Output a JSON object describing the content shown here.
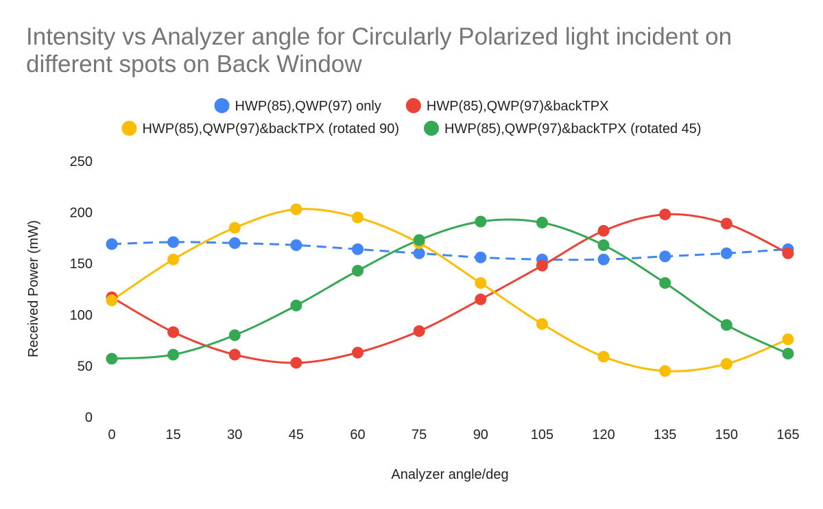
{
  "chart_data": {
    "type": "line",
    "title": "Intensity vs Analyzer angle for Circularly Polarized light incident on different spots on Back Window",
    "xlabel": "Analyzer angle/deg",
    "ylabel": "Received Power (mW)",
    "categories": [
      "0",
      "15",
      "30",
      "45",
      "60",
      "75",
      "90",
      "105",
      "120",
      "135",
      "150",
      "165"
    ],
    "x": [
      0,
      15,
      30,
      45,
      60,
      75,
      90,
      105,
      120,
      135,
      150,
      165
    ],
    "ylim": [
      0,
      250
    ],
    "yticks": [
      0,
      50,
      100,
      150,
      200,
      250
    ],
    "grid": false,
    "legend_position": "top",
    "series": [
      {
        "name": "HWP(85),QWP(97) only",
        "color": "#4285F4",
        "line": "dashed",
        "values": [
          169,
          171,
          170,
          168,
          164,
          160,
          156,
          154,
          154,
          157,
          160,
          164
        ]
      },
      {
        "name": "HWP(85),QWP(97)&backTPX",
        "color": "#EA4335",
        "line": "solid",
        "values": [
          117,
          83,
          61,
          53,
          63,
          84,
          115,
          148,
          182,
          198,
          189,
          160
        ]
      },
      {
        "name": "HWP(85),QWP(97)&backTPX (rotated 90)",
        "color": "#FBBC04",
        "line": "solid",
        "values": [
          114,
          154,
          185,
          203,
          195,
          170,
          131,
          91,
          59,
          45,
          52,
          76
        ]
      },
      {
        "name": "HWP(85),QWP(97)&backTPX (rotated 45)",
        "color": "#34A853",
        "line": "solid",
        "values": [
          57,
          61,
          80,
          109,
          143,
          173,
          191,
          190,
          168,
          131,
          90,
          62
        ]
      }
    ]
  }
}
